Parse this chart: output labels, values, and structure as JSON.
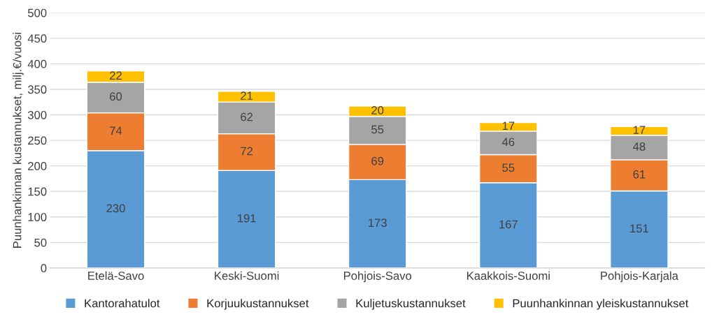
{
  "chart_data": {
    "type": "bar",
    "stacked": true,
    "ylabel": "Puunhankinnan kustannukset, milj.€/vuosi",
    "categories": [
      "Etelä-Savo",
      "Keski-Suomi",
      "Pohjois-Savo",
      "Kaakkois-Suomi",
      "Pohjois-Karjala"
    ],
    "series": [
      {
        "name": "Kantorahatulot",
        "color": "#5b9bd5",
        "values": [
          230,
          191,
          173,
          167,
          151
        ]
      },
      {
        "name": "Korjuukustannukset",
        "color": "#ed7d31",
        "values": [
          74,
          72,
          69,
          55,
          61
        ]
      },
      {
        "name": "Kuljetuskustannukset",
        "color": "#a5a5a5",
        "values": [
          60,
          62,
          55,
          46,
          48
        ]
      },
      {
        "name": "Puunhankinnan yleiskustannukset",
        "color": "#ffc000",
        "values": [
          22,
          21,
          20,
          17,
          17
        ]
      }
    ],
    "ylim": [
      0,
      500
    ],
    "yticks": [
      0,
      50,
      100,
      150,
      200,
      250,
      300,
      350,
      400,
      450,
      500
    ],
    "grid": "y",
    "legend": "bottom",
    "data_labels": true
  }
}
